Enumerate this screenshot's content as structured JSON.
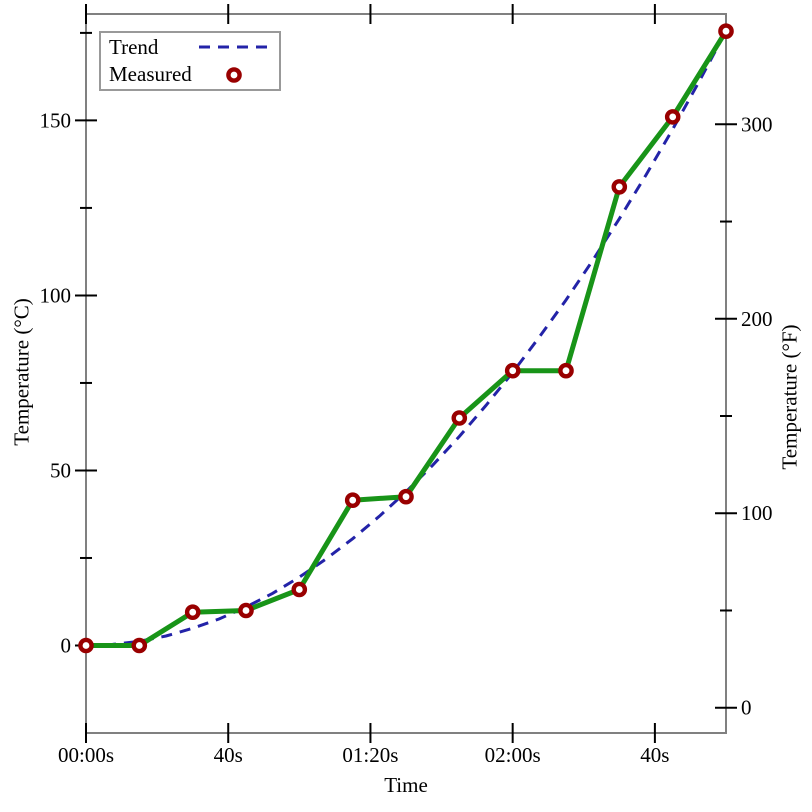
{
  "colors": {
    "trend": "#2323a8",
    "measured_line": "#189418",
    "measured_marker": "#990000",
    "frame": "#808080",
    "tick": "#000000",
    "text": "#000000",
    "legend_border": "#999999"
  },
  "legend": {
    "position": "top-left",
    "items": [
      {
        "label": "Trend",
        "series": "trend"
      },
      {
        "label": "Measured",
        "series": "measured"
      }
    ]
  },
  "chart_data": {
    "type": "line",
    "title": "",
    "xlabel": "Time",
    "ylabel_left": "Temperature (°C)",
    "ylabel_right": "Temperature (°F)",
    "x_unit": "seconds",
    "xlim": [
      0,
      180
    ],
    "ylim_c": [
      -25,
      180.4
    ],
    "grid": false,
    "x_ticks": {
      "values": [
        0,
        40,
        80,
        120,
        160
      ],
      "labels": [
        "00:00s",
        "40s",
        "01:20s",
        "02:00s",
        "40s"
      ]
    },
    "y_left_ticks": {
      "major": [
        0,
        50,
        100,
        150
      ],
      "labels": [
        "0",
        "50",
        "100",
        "150"
      ],
      "minor": [
        25,
        75,
        125,
        175
      ]
    },
    "y_right_ticks_f": {
      "major": [
        0,
        100,
        200,
        300
      ],
      "labels": [
        "0",
        "100",
        "200",
        "300"
      ],
      "minor": [
        50,
        150,
        250,
        350
      ]
    },
    "series": [
      {
        "name": "Trend",
        "style": "dashed",
        "color_key": "trend",
        "x": [
          0,
          7.5,
          15,
          22.5,
          30,
          37.5,
          45,
          52.5,
          60,
          67.5,
          75,
          82.5,
          90,
          97.5,
          105,
          112.5,
          120,
          127.5,
          135,
          142.5,
          150,
          157.5,
          165,
          172.5,
          180
        ],
        "y": [
          0,
          0.3,
          1.2,
          2.7,
          4.9,
          7.6,
          11,
          14.9,
          19.5,
          24.7,
          30.5,
          36.9,
          43.9,
          51.5,
          59.7,
          68.6,
          78,
          88.1,
          98.7,
          110,
          121.9,
          134.4,
          147.5,
          161.2,
          175.5
        ]
      },
      {
        "name": "Measured",
        "style": "solid-with-ring-markers",
        "color_key": "measured_line",
        "marker_color_key": "measured_marker",
        "x": [
          0,
          15,
          30,
          45,
          60,
          75,
          90,
          105,
          120,
          135,
          150,
          165,
          180
        ],
        "y": [
          0,
          0,
          9.5,
          10,
          16,
          41.5,
          42.5,
          65,
          78.5,
          78.5,
          131,
          151,
          175.5
        ]
      }
    ]
  }
}
